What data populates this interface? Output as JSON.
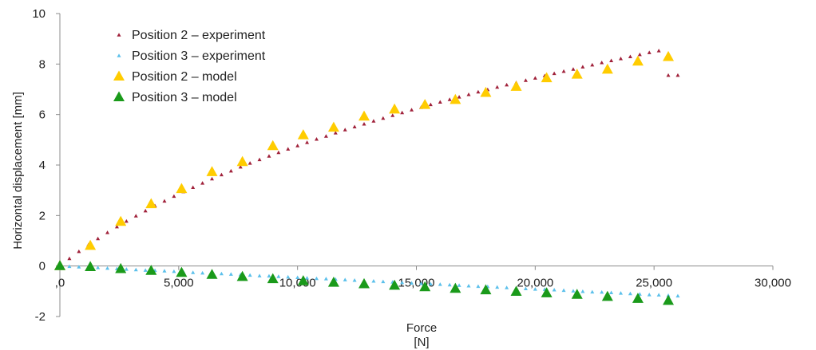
{
  "chart_data": {
    "type": "scatter",
    "title": "",
    "xlabel": "Force",
    "xunit": "[N]",
    "ylabel": "Horizontal displacement [mm]",
    "xlim": [
      0,
      30000
    ],
    "ylim": [
      -2,
      10
    ],
    "x_ticks": [
      {
        "value": 0,
        "label": ",0"
      },
      {
        "value": 5000,
        "label": "5,000"
      },
      {
        "value": 10000,
        "label": "10,000"
      },
      {
        "value": 15000,
        "label": "15,000"
      },
      {
        "value": 20000,
        "label": "20,000"
      },
      {
        "value": 25000,
        "label": "25,000"
      },
      {
        "value": 30000,
        "label": "30,000"
      }
    ],
    "y_ticks": [
      {
        "value": -2,
        "label": "-2"
      },
      {
        "value": 0,
        "label": "0"
      },
      {
        "value": 2,
        "label": "2"
      },
      {
        "value": 4,
        "label": "4"
      },
      {
        "value": 6,
        "label": "6"
      },
      {
        "value": 8,
        "label": "8"
      },
      {
        "value": 10,
        "label": "10"
      }
    ],
    "grid": false,
    "legend_position": "top-left",
    "series": [
      {
        "name": "Position 2 – experiment",
        "color": "#a0213a",
        "marker": "triangle-small",
        "x": [
          0,
          400,
          800,
          1200,
          1600,
          2000,
          2400,
          2800,
          3200,
          3600,
          4000,
          4400,
          4800,
          5200,
          5600,
          6000,
          6400,
          6800,
          7200,
          7600,
          8000,
          8400,
          8800,
          9200,
          9600,
          10000,
          10400,
          10800,
          11200,
          11600,
          12000,
          12400,
          12800,
          13200,
          13600,
          14000,
          14400,
          14800,
          15200,
          15600,
          16000,
          16400,
          16800,
          17200,
          17600,
          18000,
          18400,
          18800,
          19200,
          19600,
          20000,
          20400,
          20800,
          21200,
          21600,
          22000,
          22400,
          22800,
          23200,
          23600,
          24000,
          24400,
          24800,
          25200,
          25600,
          26000
        ],
        "values": [
          0.0,
          0.29,
          0.57,
          0.83,
          1.08,
          1.32,
          1.55,
          1.77,
          1.98,
          2.18,
          2.38,
          2.57,
          2.76,
          2.94,
          3.11,
          3.28,
          3.45,
          3.61,
          3.76,
          3.92,
          4.07,
          4.21,
          4.35,
          4.49,
          4.63,
          4.76,
          4.89,
          5.02,
          5.14,
          5.27,
          5.39,
          5.51,
          5.62,
          5.74,
          5.85,
          5.96,
          6.07,
          6.18,
          6.28,
          6.39,
          6.49,
          6.59,
          6.69,
          6.79,
          6.89,
          6.98,
          7.08,
          7.17,
          7.26,
          7.35,
          7.44,
          7.53,
          7.62,
          7.71,
          7.79,
          7.88,
          7.96,
          8.05,
          8.13,
          8.21,
          8.29,
          8.37,
          8.45,
          8.52,
          7.55,
          7.55
        ]
      },
      {
        "name": "Position 3 – experiment",
        "color": "#5bc0eb",
        "marker": "triangle-small",
        "x": [
          0,
          400,
          800,
          1200,
          1600,
          2000,
          2400,
          2800,
          3200,
          3600,
          4000,
          4400,
          4800,
          5200,
          5600,
          6000,
          6400,
          6800,
          7200,
          7600,
          8000,
          8400,
          8800,
          9200,
          9600,
          10000,
          10400,
          10800,
          11200,
          11600,
          12000,
          12400,
          12800,
          13200,
          13600,
          14000,
          14400,
          14800,
          15200,
          15600,
          16000,
          16400,
          16800,
          17200,
          17600,
          18000,
          18400,
          18800,
          19200,
          19600,
          20000,
          20400,
          20800,
          21200,
          21600,
          22000,
          22400,
          22800,
          23200,
          23600,
          24000,
          24400,
          24800,
          25200,
          25600,
          26000
        ],
        "values": [
          0.0,
          -0.02,
          -0.04,
          -0.06,
          -0.07,
          -0.09,
          -0.11,
          -0.13,
          -0.15,
          -0.17,
          -0.18,
          -0.2,
          -0.22,
          -0.24,
          -0.26,
          -0.28,
          -0.29,
          -0.31,
          -0.33,
          -0.35,
          -0.37,
          -0.39,
          -0.4,
          -0.42,
          -0.44,
          -0.46,
          -0.48,
          -0.5,
          -0.51,
          -0.53,
          -0.55,
          -0.57,
          -0.59,
          -0.6,
          -0.62,
          -0.64,
          -0.66,
          -0.68,
          -0.7,
          -0.71,
          -0.73,
          -0.75,
          -0.77,
          -0.79,
          -0.81,
          -0.82,
          -0.84,
          -0.86,
          -0.88,
          -0.9,
          -0.92,
          -0.93,
          -0.95,
          -0.97,
          -0.99,
          -1.01,
          -1.03,
          -1.04,
          -1.06,
          -1.08,
          -1.1,
          -1.12,
          -1.14,
          -1.15,
          -1.17,
          -1.19
        ]
      },
      {
        "name": "Position 2 – model",
        "color": "#ffcc00",
        "marker": "triangle-large",
        "x": [
          0,
          1280,
          2560,
          3840,
          5120,
          6400,
          7680,
          8960,
          10240,
          11520,
          12800,
          14080,
          15360,
          16640,
          17920,
          19200,
          20480,
          21760,
          23040,
          24320,
          25600
        ],
        "values": [
          0.0,
          0.8,
          1.75,
          2.45,
          3.05,
          3.72,
          4.12,
          4.75,
          5.18,
          5.48,
          5.92,
          6.2,
          6.38,
          6.58,
          6.86,
          7.1,
          7.44,
          7.58,
          7.78,
          8.1,
          8.28
        ]
      },
      {
        "name": "Position 3 – model",
        "color": "#1a9a1a",
        "marker": "triangle-large",
        "x": [
          0,
          1280,
          2560,
          3840,
          5120,
          6400,
          7680,
          8960,
          10240,
          11520,
          12800,
          14080,
          15360,
          16640,
          17920,
          19200,
          20480,
          21760,
          23040,
          24320,
          25600
        ],
        "values": [
          0.0,
          -0.04,
          -0.12,
          -0.19,
          -0.27,
          -0.35,
          -0.43,
          -0.52,
          -0.6,
          -0.66,
          -0.72,
          -0.78,
          -0.84,
          -0.9,
          -0.96,
          -1.02,
          -1.08,
          -1.14,
          -1.22,
          -1.3,
          -1.38
        ]
      }
    ]
  }
}
